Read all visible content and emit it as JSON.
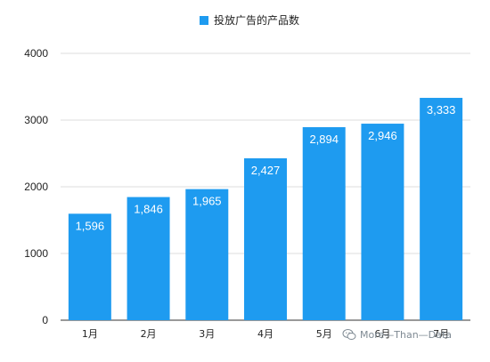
{
  "chart_data": {
    "type": "bar",
    "categories": [
      "1月",
      "2月",
      "3月",
      "4月",
      "5月",
      "6月",
      "7月"
    ],
    "series": [
      {
        "name": "投放广告的产品数",
        "values": [
          1596,
          1846,
          1965,
          2427,
          2894,
          2946,
          3333
        ],
        "data_labels": [
          "1,596",
          "1,846",
          "1,965",
          "2,427",
          "2,894",
          "2,946",
          "3,333"
        ]
      }
    ],
    "y_ticks": [
      "0",
      "1000",
      "2000",
      "3000",
      "4000"
    ],
    "ylim": [
      0,
      4000
    ],
    "title": "",
    "xlabel": "",
    "ylabel": "",
    "legend_position": "top-center",
    "grid": "horizontal",
    "colors": {
      "bar": "#1E9BF0",
      "grid": "#dcdcdc",
      "baseline": "#333333"
    }
  },
  "legend": {
    "label": "投放广告的产品数"
  },
  "watermark": {
    "text": "More—Than—Data",
    "icon": "wechat-icon"
  }
}
